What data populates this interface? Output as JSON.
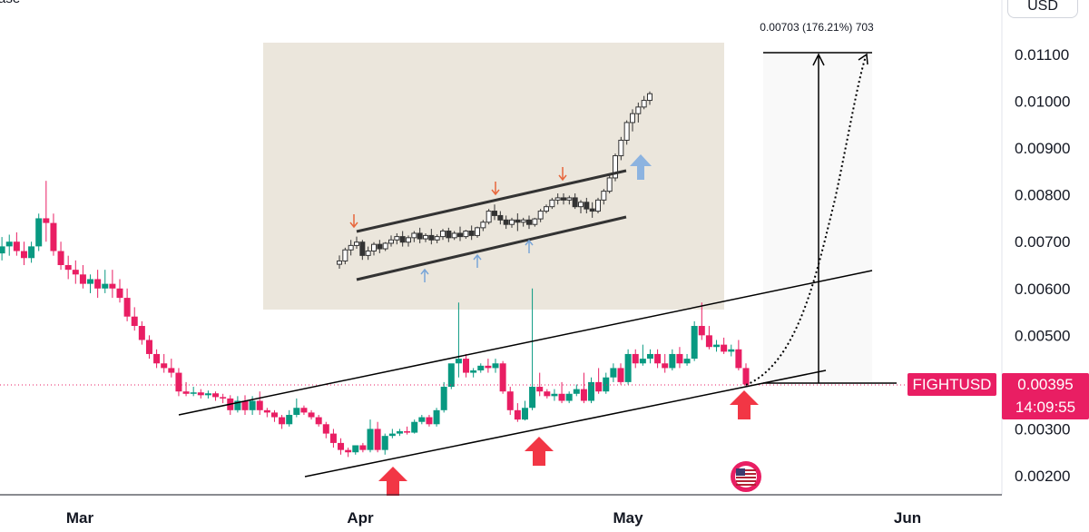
{
  "header": {
    "partial_label": "ase",
    "currency": "USD"
  },
  "measure_label": "0.00703 (176.21%) 703",
  "symbol": "FIGHTUSD",
  "last_price": "0.00395",
  "countdown": "14:09:55",
  "colors": {
    "up": "#089981",
    "down": "#e91e63",
    "tag": "#e91e63",
    "arrow": "#f23645",
    "inset_bg": "#ebe6dc"
  },
  "icons": {
    "us_flag": "us-flag-icon"
  },
  "chart_data": [
    {
      "type": "candlestick",
      "xaxis_ticks": [
        "Mar",
        "Apr",
        "May",
        "Jun"
      ],
      "yaxis_ticks": [
        "0.01100",
        "0.01000",
        "0.00900",
        "0.00800",
        "0.00700",
        "0.00600",
        "0.00500",
        "0.00300",
        "0.00200"
      ],
      "ylim": [
        0.00182,
        0.0116
      ],
      "candles": [
        [
          0.0066,
          0.0072,
          0.0067,
          0.0065
        ],
        [
          0.00675,
          0.0071,
          0.0069,
          0.0066
        ],
        [
          0.0069,
          0.00715,
          0.007,
          0.0067
        ],
        [
          0.007,
          0.0072,
          0.0068,
          0.0067
        ],
        [
          0.0068,
          0.007,
          0.00665,
          0.0065
        ],
        [
          0.00665,
          0.007,
          0.0069,
          0.00655
        ],
        [
          0.0069,
          0.0076,
          0.0075,
          0.0068
        ],
        [
          0.0075,
          0.0083,
          0.0074,
          0.007
        ],
        [
          0.0074,
          0.0076,
          0.0068,
          0.0067
        ],
        [
          0.0068,
          0.007,
          0.0065,
          0.0064
        ],
        [
          0.0065,
          0.0067,
          0.0064,
          0.0062
        ],
        [
          0.0064,
          0.0066,
          0.0063,
          0.0061
        ],
        [
          0.0063,
          0.0065,
          0.0061,
          0.006
        ],
        [
          0.0061,
          0.0063,
          0.0062,
          0.0059
        ],
        [
          0.0062,
          0.0064,
          0.006,
          0.0058
        ],
        [
          0.006,
          0.0064,
          0.0061,
          0.0059
        ],
        [
          0.0061,
          0.0064,
          0.006,
          0.0058
        ],
        [
          0.006,
          0.0062,
          0.0058,
          0.0057
        ],
        [
          0.0058,
          0.006,
          0.0054,
          0.0053
        ],
        [
          0.0054,
          0.0056,
          0.0052,
          0.0051
        ],
        [
          0.0052,
          0.0053,
          0.0049,
          0.0048
        ],
        [
          0.0049,
          0.005,
          0.0046,
          0.0045
        ],
        [
          0.0046,
          0.0047,
          0.0044,
          0.0043
        ],
        [
          0.0044,
          0.0046,
          0.0043,
          0.0042
        ],
        [
          0.0043,
          0.0045,
          0.0042,
          0.0041
        ],
        [
          0.0042,
          0.0043,
          0.0038,
          0.0037
        ],
        [
          0.0038,
          0.004,
          0.00375,
          0.0037
        ],
        [
          0.00375,
          0.0039,
          0.00378,
          0.0037
        ],
        [
          0.00378,
          0.00385,
          0.00372,
          0.00365
        ],
        [
          0.00372,
          0.00382,
          0.00376,
          0.00365
        ],
        [
          0.00376,
          0.0038,
          0.00368,
          0.0036
        ],
        [
          0.00368,
          0.00375,
          0.00365,
          0.00355
        ],
        [
          0.00365,
          0.00372,
          0.0034,
          0.0033
        ],
        [
          0.0034,
          0.0037,
          0.0036,
          0.00335
        ],
        [
          0.0036,
          0.00372,
          0.0034,
          0.0033
        ],
        [
          0.0034,
          0.0037,
          0.0036,
          0.0033
        ],
        [
          0.0036,
          0.0038,
          0.0034,
          0.0033
        ],
        [
          0.0034,
          0.00345,
          0.00335,
          0.00325
        ],
        [
          0.00335,
          0.0034,
          0.00325,
          0.00315
        ],
        [
          0.00325,
          0.0033,
          0.0031,
          0.003
        ],
        [
          0.0031,
          0.0034,
          0.0033,
          0.00305
        ],
        [
          0.0033,
          0.00365,
          0.00345,
          0.00325
        ],
        [
          0.00345,
          0.0035,
          0.00335,
          0.0033
        ],
        [
          0.00335,
          0.0034,
          0.00325,
          0.0032
        ],
        [
          0.00325,
          0.0033,
          0.0031,
          0.00305
        ],
        [
          0.0031,
          0.00315,
          0.0029,
          0.0028
        ],
        [
          0.0029,
          0.003,
          0.0027,
          0.0026
        ],
        [
          0.0027,
          0.0028,
          0.00255,
          0.00245
        ],
        [
          0.00255,
          0.0026,
          0.0025,
          0.0024
        ],
        [
          0.0025,
          0.0026,
          0.00265,
          0.00245
        ],
        [
          0.00265,
          0.0027,
          0.00255,
          0.0025
        ],
        [
          0.00255,
          0.0032,
          0.003,
          0.0025
        ],
        [
          0.003,
          0.00315,
          0.00255,
          0.0025
        ],
        [
          0.00255,
          0.0029,
          0.00285,
          0.00245
        ],
        [
          0.00285,
          0.003,
          0.0029,
          0.0028
        ],
        [
          0.0029,
          0.003,
          0.00295,
          0.00285
        ],
        [
          0.00295,
          0.00305,
          0.00292,
          0.00288
        ],
        [
          0.00292,
          0.0032,
          0.00315,
          0.0029
        ],
        [
          0.00315,
          0.0033,
          0.00325,
          0.0031
        ],
        [
          0.00325,
          0.0033,
          0.0031,
          0.00305
        ],
        [
          0.0031,
          0.00345,
          0.0034,
          0.00305
        ],
        [
          0.0034,
          0.004,
          0.0039,
          0.00335
        ],
        [
          0.0039,
          0.0042,
          0.0044,
          0.00385
        ],
        [
          0.0044,
          0.0057,
          0.0045,
          0.0041
        ],
        [
          0.0045,
          0.0046,
          0.0042,
          0.0041
        ],
        [
          0.0042,
          0.0043,
          0.00425,
          0.0041
        ],
        [
          0.00425,
          0.0044,
          0.00435,
          0.0042
        ],
        [
          0.00435,
          0.0045,
          0.0043,
          0.0042
        ],
        [
          0.0043,
          0.0045,
          0.0044,
          0.0042
        ],
        [
          0.0044,
          0.00445,
          0.0038,
          0.00375
        ],
        [
          0.0038,
          0.0039,
          0.0034,
          0.0033
        ],
        [
          0.0034,
          0.00355,
          0.0032,
          0.00315
        ],
        [
          0.0032,
          0.0036,
          0.00345,
          0.00318
        ],
        [
          0.00345,
          0.006,
          0.0039,
          0.0034
        ],
        [
          0.0039,
          0.0042,
          0.0038,
          0.0037
        ],
        [
          0.0038,
          0.00385,
          0.0037,
          0.00365
        ],
        [
          0.0037,
          0.00385,
          0.00375,
          0.0036
        ],
        [
          0.00375,
          0.004,
          0.0036,
          0.00355
        ],
        [
          0.0036,
          0.0038,
          0.00375,
          0.00355
        ],
        [
          0.00375,
          0.00395,
          0.00385,
          0.0037
        ],
        [
          0.00385,
          0.0042,
          0.0036,
          0.00355
        ],
        [
          0.0036,
          0.0041,
          0.004,
          0.00355
        ],
        [
          0.004,
          0.0043,
          0.0038,
          0.00375
        ],
        [
          0.0038,
          0.0042,
          0.0041,
          0.00375
        ],
        [
          0.0041,
          0.0044,
          0.0043,
          0.004
        ],
        [
          0.0043,
          0.0044,
          0.004,
          0.00395
        ],
        [
          0.004,
          0.0047,
          0.0046,
          0.00395
        ],
        [
          0.0046,
          0.0047,
          0.0044,
          0.0043
        ],
        [
          0.0044,
          0.0048,
          0.0045,
          0.00435
        ],
        [
          0.0045,
          0.0047,
          0.0046,
          0.0044
        ],
        [
          0.0046,
          0.0047,
          0.0044,
          0.0043
        ],
        [
          0.0044,
          0.0046,
          0.0043,
          0.0042
        ],
        [
          0.0043,
          0.0047,
          0.0046,
          0.00425
        ],
        [
          0.0046,
          0.00475,
          0.0044,
          0.0043
        ],
        [
          0.0044,
          0.0046,
          0.0045,
          0.00435
        ],
        [
          0.0045,
          0.0053,
          0.0052,
          0.00445
        ],
        [
          0.0052,
          0.0057,
          0.005,
          0.0049
        ],
        [
          0.005,
          0.0052,
          0.00475,
          0.0047
        ],
        [
          0.00475,
          0.0049,
          0.0048,
          0.00465
        ],
        [
          0.0048,
          0.00495,
          0.00465,
          0.0046
        ],
        [
          0.00465,
          0.0048,
          0.0047,
          0.00455
        ],
        [
          0.0047,
          0.0049,
          0.0043,
          0.00425
        ],
        [
          0.0043,
          0.0044,
          0.00395,
          0.0039
        ]
      ]
    },
    {
      "type": "candlestick",
      "candles": [
        [
          0.3,
          0.38,
          0.33,
          0.26
        ],
        [
          0.33,
          0.45,
          0.43,
          0.3
        ],
        [
          0.43,
          0.52,
          0.47,
          0.38
        ],
        [
          0.47,
          0.55,
          0.5,
          0.44
        ],
        [
          0.5,
          0.52,
          0.38,
          0.34
        ],
        [
          0.38,
          0.46,
          0.42,
          0.34
        ],
        [
          0.42,
          0.5,
          0.48,
          0.38
        ],
        [
          0.48,
          0.52,
          0.44,
          0.4
        ],
        [
          0.44,
          0.5,
          0.49,
          0.42
        ],
        [
          0.49,
          0.56,
          0.52,
          0.46
        ],
        [
          0.52,
          0.58,
          0.55,
          0.48
        ],
        [
          0.55,
          0.6,
          0.5,
          0.46
        ],
        [
          0.5,
          0.56,
          0.54,
          0.46
        ],
        [
          0.54,
          0.6,
          0.58,
          0.5
        ],
        [
          0.58,
          0.63,
          0.53,
          0.49
        ],
        [
          0.53,
          0.58,
          0.56,
          0.5
        ],
        [
          0.56,
          0.62,
          0.52,
          0.48
        ],
        [
          0.52,
          0.57,
          0.55,
          0.49
        ],
        [
          0.55,
          0.62,
          0.6,
          0.52
        ],
        [
          0.6,
          0.63,
          0.54,
          0.5
        ],
        [
          0.54,
          0.6,
          0.58,
          0.52
        ],
        [
          0.58,
          0.64,
          0.55,
          0.51
        ],
        [
          0.55,
          0.61,
          0.6,
          0.53
        ],
        [
          0.6,
          0.65,
          0.56,
          0.52
        ],
        [
          0.56,
          0.64,
          0.63,
          0.54
        ],
        [
          0.63,
          0.7,
          0.68,
          0.6
        ],
        [
          0.68,
          0.8,
          0.78,
          0.66
        ],
        [
          0.78,
          0.84,
          0.74,
          0.7
        ],
        [
          0.74,
          0.78,
          0.7,
          0.66
        ],
        [
          0.7,
          0.74,
          0.66,
          0.62
        ],
        [
          0.66,
          0.72,
          0.7,
          0.63
        ],
        [
          0.7,
          0.76,
          0.68,
          0.6
        ],
        [
          0.68,
          0.72,
          0.7,
          0.64
        ],
        [
          0.7,
          0.74,
          0.66,
          0.62
        ],
        [
          0.66,
          0.72,
          0.71,
          0.64
        ],
        [
          0.71,
          0.8,
          0.78,
          0.68
        ],
        [
          0.78,
          0.84,
          0.82,
          0.76
        ],
        [
          0.82,
          0.9,
          0.88,
          0.8
        ],
        [
          0.88,
          0.94,
          0.9,
          0.84
        ],
        [
          0.9,
          0.94,
          0.88,
          0.84
        ],
        [
          0.88,
          0.92,
          0.9,
          0.84
        ],
        [
          0.9,
          0.94,
          0.82,
          0.8
        ],
        [
          0.82,
          0.88,
          0.86,
          0.76
        ],
        [
          0.86,
          0.9,
          0.8,
          0.76
        ],
        [
          0.8,
          0.86,
          0.78,
          0.72
        ],
        [
          0.78,
          0.9,
          0.88,
          0.76
        ],
        [
          0.88,
          0.98,
          0.96,
          0.84
        ],
        [
          0.96,
          1.1,
          1.08,
          0.94
        ],
        [
          1.08,
          1.3,
          1.28,
          1.05
        ],
        [
          1.28,
          1.45,
          1.42,
          1.24
        ],
        [
          1.42,
          1.6,
          1.58,
          1.38
        ],
        [
          1.58,
          1.7,
          1.66,
          1.5
        ],
        [
          1.66,
          1.76,
          1.72,
          1.58
        ],
        [
          1.72,
          1.82,
          1.78,
          1.7
        ],
        [
          1.78,
          1.86,
          1.84,
          1.74
        ]
      ]
    }
  ]
}
